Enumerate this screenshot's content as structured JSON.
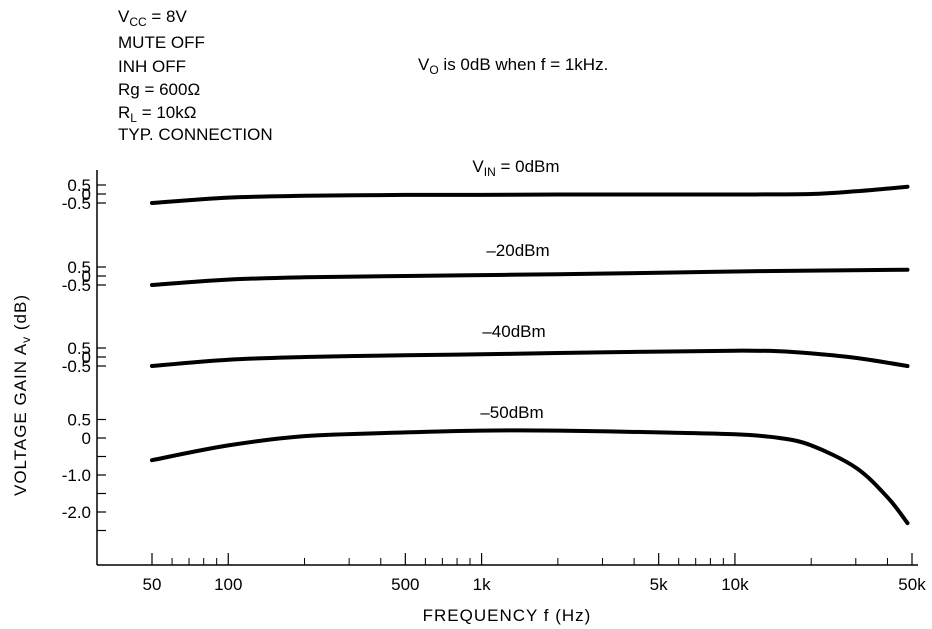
{
  "conditions": {
    "vcc": {
      "main": "V",
      "sub": "CC",
      "rest": " = 8V"
    },
    "mute": "MUTE OFF",
    "inh": "INH OFF",
    "rg": "Rg = 600Ω",
    "rl": {
      "main": "R",
      "sub": "L",
      "rest": " = 10kΩ"
    },
    "conn": "TYP. CONNECTION"
  },
  "note": {
    "main": "V",
    "sub": "O",
    "rest": " is 0dB when f = 1kHz."
  },
  "chart_data": {
    "type": "line",
    "title": "",
    "xlabel": "FREQUENCY  f  (Hz)",
    "ylabel": {
      "main": "VOLTAGE GAIN  A",
      "sub": "v",
      "rest": "  (dB)"
    },
    "x_scale": "log",
    "xlim": [
      35,
      50000
    ],
    "x_ticks": [
      50,
      100,
      500,
      1000,
      5000,
      10000,
      50000
    ],
    "x_tick_labels": [
      "50",
      "100",
      "500",
      "1k",
      "5k",
      "10k",
      "50k"
    ],
    "series": [
      {
        "name": "VIN = 0dBm",
        "label": {
          "main": "V",
          "sub": "IN",
          "rest": " = 0dBm"
        },
        "y_tick_labels": [
          "0.5",
          "0",
          "-0.5"
        ],
        "y_ticks": [
          0.5,
          0,
          -0.5
        ],
        "x": [
          50,
          100,
          200,
          500,
          1000,
          2000,
          5000,
          10000,
          20000,
          30000,
          40000,
          48000
        ],
        "y": [
          -0.5,
          -0.2,
          -0.1,
          -0.05,
          -0.05,
          -0.03,
          -0.03,
          -0.03,
          0,
          0.15,
          0.3,
          0.4
        ]
      },
      {
        "name": "-20dBm",
        "label": {
          "main": "–20dBm",
          "sub": "",
          "rest": ""
        },
        "y_tick_labels": [
          "0.5",
          "0",
          "-0.5"
        ],
        "y_ticks": [
          0.5,
          0,
          -0.5
        ],
        "x": [
          50,
          100,
          200,
          500,
          1000,
          2000,
          5000,
          10000,
          20000,
          48000
        ],
        "y": [
          -0.5,
          -0.2,
          -0.07,
          0.0,
          0.05,
          0.1,
          0.18,
          0.25,
          0.3,
          0.35
        ]
      },
      {
        "name": "-40dBm",
        "label": {
          "main": "–40dBm",
          "sub": "",
          "rest": ""
        },
        "y_tick_labels": [
          "0.5",
          "0",
          "-0.5"
        ],
        "y_ticks": [
          0.5,
          0,
          -0.5
        ],
        "x": [
          50,
          100,
          200,
          500,
          1000,
          2000,
          5000,
          10000,
          15000,
          20000,
          30000,
          48000
        ],
        "y": [
          -0.5,
          -0.15,
          0.0,
          0.1,
          0.15,
          0.22,
          0.3,
          0.35,
          0.32,
          0.2,
          -0.05,
          -0.5
        ]
      },
      {
        "name": "-50dBm",
        "label": {
          "main": "–50dBm",
          "sub": "",
          "rest": ""
        },
        "y_tick_labels": [
          "0.5",
          "0",
          "-1.0",
          "-2.0"
        ],
        "y_ticks": [
          0.5,
          0,
          -1.0,
          -2.0
        ],
        "x": [
          50,
          100,
          200,
          500,
          1000,
          2000,
          5000,
          10000,
          15000,
          20000,
          30000,
          40000,
          48000
        ],
        "y": [
          -0.6,
          -0.2,
          0.05,
          0.15,
          0.2,
          0.2,
          0.15,
          0.1,
          0.0,
          -0.2,
          -0.8,
          -1.6,
          -2.3
        ]
      }
    ],
    "grid": false,
    "legend": "none; series labeled inline above curves",
    "line_color": "#000000"
  }
}
